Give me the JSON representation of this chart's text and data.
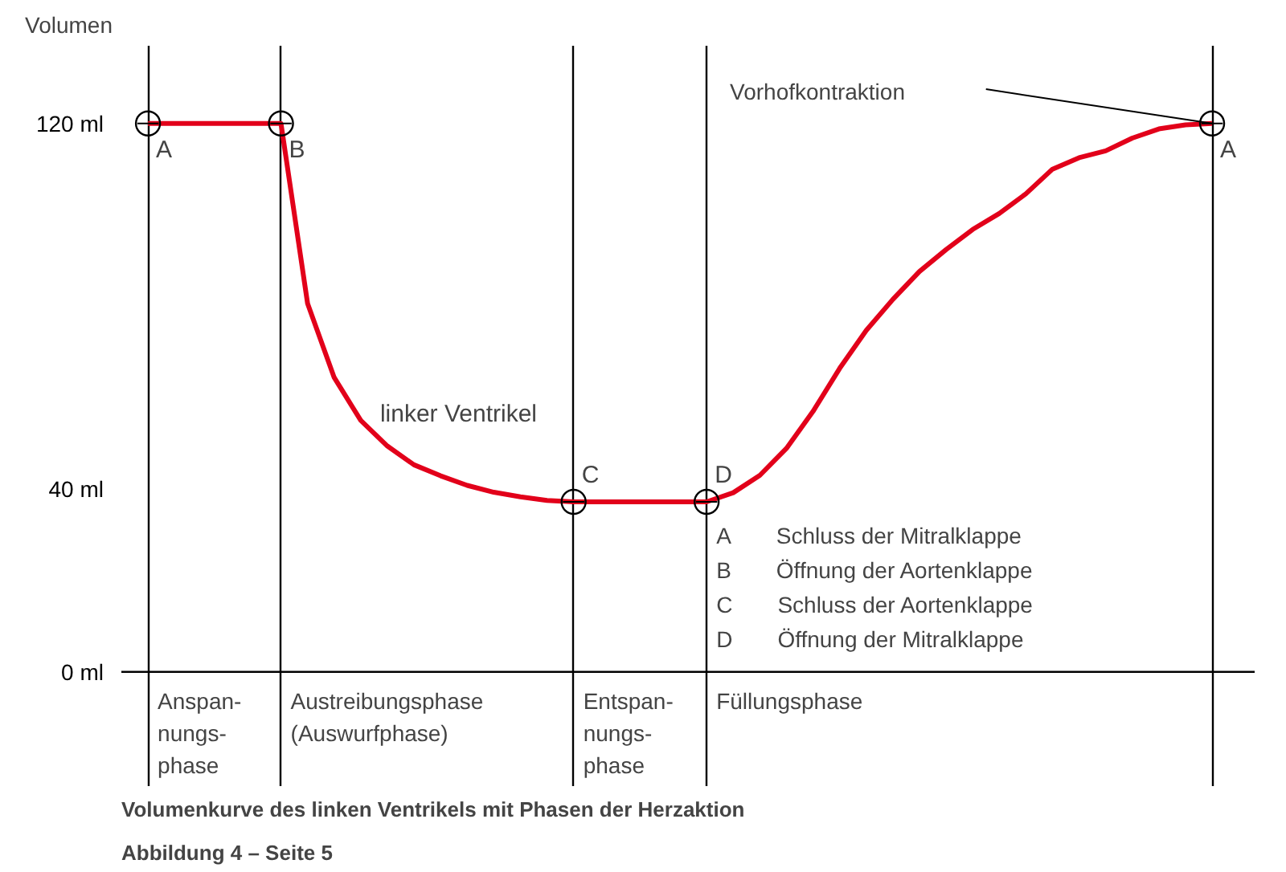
{
  "chart_data": {
    "type": "line",
    "title": "Volumenkurve des linken Ventrikels mit Phasen der Herzaktion",
    "ylabel": "Volumen",
    "categories": [
      null,
      null,
      null,
      null,
      null,
      null,
      null,
      null,
      null,
      null,
      null,
      null,
      null,
      null,
      null,
      null,
      null,
      null,
      null,
      null,
      null,
      null,
      null,
      null,
      null,
      null,
      null,
      null,
      null,
      null,
      null,
      null,
      null,
      null,
      null,
      null,
      null,
      null,
      null,
      null,
      null
    ],
    "ylim": [
      -25,
      137
    ],
    "yticks": [
      {
        "value": 0,
        "label": "0 ml"
      },
      {
        "value": 40,
        "label": "40 ml"
      },
      {
        "value": 120,
        "label": "120 ml"
      }
    ],
    "tick_labels": "y",
    "grid": "x",
    "line_style": "solid",
    "series": [
      {
        "name": "linker Ventrikel",
        "color": "#e2001a",
        "values": [
          120,
          120,
          120,
          120,
          120,
          120,
          80.6,
          64.4,
          55,
          49.4,
          45.3,
          42.9,
          40.8,
          39.3,
          38.3,
          37.5,
          37.2,
          37.2,
          37.2,
          37.2,
          37.2,
          37.2,
          39.2,
          43,
          48.9,
          57,
          66.4,
          74.7,
          81.5,
          87.6,
          92.4,
          96.8,
          100.3,
          104.6,
          110,
          112.5,
          114,
          116.8,
          118.8,
          119.7,
          120
        ]
      }
    ],
    "ref_lines": [
      {
        "axis": "y",
        "value": 0,
        "color": "#000000"
      }
    ],
    "annotations": [
      "A",
      "B",
      "C",
      "D",
      "A",
      "Anspan-\nnungs-\nphase",
      "Austreibungsphase\n(Auswurfphase)",
      "Entspan-\nnungs-\nphase",
      "Füllungsphase",
      "Vorhofkontraktion",
      "A  Schluss der Mitralklappe",
      "B  Öffnung der Aortenklappe",
      "C  Schluss der Aortenklappe",
      "D  Öffnung der Mitralklappe",
      "Abbildung 4 – Seite 5"
    ]
  }
}
